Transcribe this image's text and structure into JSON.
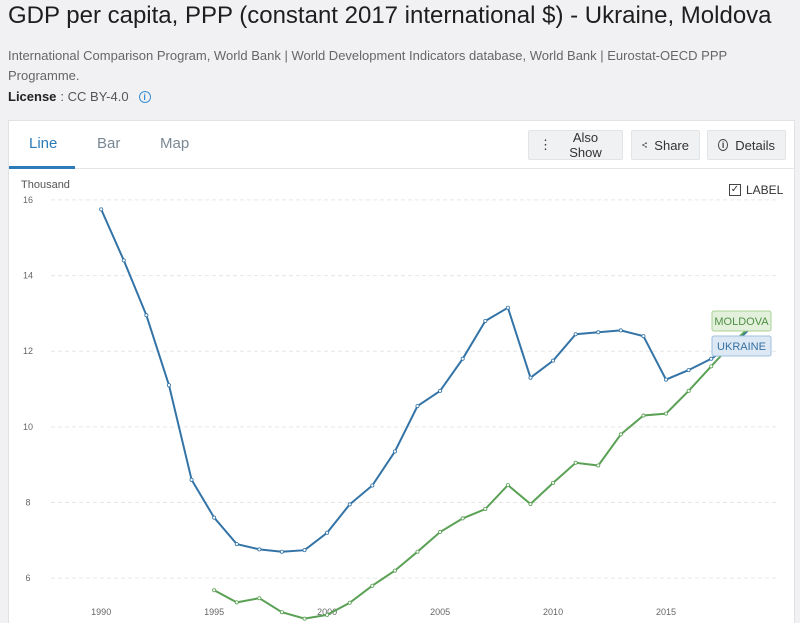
{
  "header": {
    "title": "GDP per capita, PPP (constant 2017 international $) - Ukraine, Moldova",
    "source": "International Comparison Program, World Bank | World Development Indicators database, World Bank | Eurostat-OECD PPP Programme.",
    "license_label": "License",
    "license_value": ": CC BY-4.0",
    "info_glyph": "i"
  },
  "tabs": [
    {
      "label": "Line",
      "active": true
    },
    {
      "label": "Bar",
      "active": false
    },
    {
      "label": "Map",
      "active": false
    }
  ],
  "toolbar": {
    "also_show": "Also Show",
    "share": "Share",
    "details": "Details",
    "also_show_glyph": "⋮",
    "details_glyph": "i"
  },
  "label_toggle": {
    "text": "LABEL",
    "checked": true,
    "check_glyph": "✓"
  },
  "chart_data": {
    "type": "line",
    "ylabel": "Thousand",
    "ylim": [
      5,
      16.5
    ],
    "xlim": [
      1988,
      2020
    ],
    "yticks": [
      6,
      8,
      10,
      12,
      14,
      16
    ],
    "xticks": [
      1990,
      1995,
      2000,
      2005,
      2010,
      2015
    ],
    "grid": true,
    "series": [
      {
        "name": "UKRAINE",
        "color": "#3373a6",
        "x": [
          1990,
          1991,
          1992,
          1993,
          1994,
          1995,
          1996,
          1997,
          1998,
          1999,
          2000,
          2001,
          2002,
          2003,
          2004,
          2005,
          2006,
          2007,
          2008,
          2009,
          2010,
          2011,
          2012,
          2013,
          2014,
          2015,
          2016,
          2017,
          2018,
          2019
        ],
        "y": [
          15.75,
          14.4,
          12.95,
          11.1,
          8.6,
          7.6,
          6.9,
          6.76,
          6.7,
          6.74,
          7.2,
          7.95,
          8.45,
          9.35,
          10.55,
          10.95,
          11.8,
          12.8,
          13.15,
          11.3,
          11.75,
          12.45,
          12.5,
          12.55,
          12.4,
          11.25,
          11.5,
          11.8,
          12.2,
          12.75
        ]
      },
      {
        "name": "MOLDOVA",
        "color": "#5aa155",
        "x": [
          1995,
          1996,
          1997,
          1998,
          1999,
          2000,
          2001,
          2002,
          2003,
          2004,
          2005,
          2006,
          2007,
          2008,
          2009,
          2010,
          2011,
          2012,
          2013,
          2014,
          2015,
          2016,
          2017,
          2018,
          2019
        ],
        "y": [
          5.68,
          5.36,
          5.47,
          5.1,
          4.93,
          5.03,
          5.35,
          5.8,
          6.2,
          6.7,
          7.22,
          7.58,
          7.83,
          8.46,
          7.96,
          8.52,
          9.05,
          8.98,
          9.8,
          10.3,
          10.35,
          10.95,
          11.6,
          12.25,
          12.8
        ]
      }
    ]
  }
}
